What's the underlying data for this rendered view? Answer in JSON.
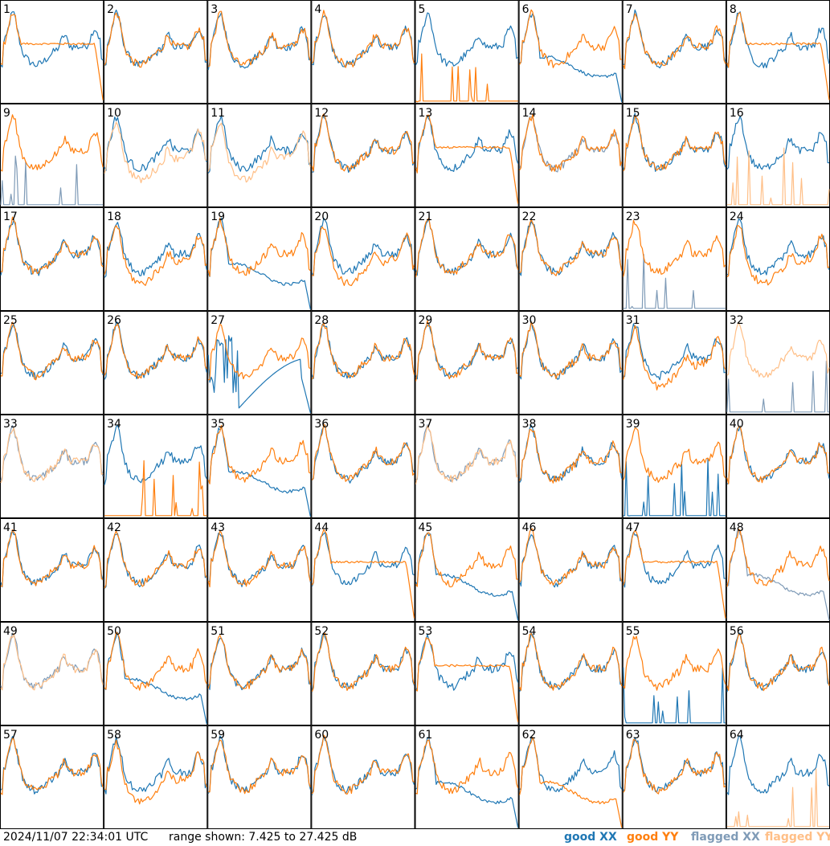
{
  "timestamp": "2024/11/07 22:34:01 UTC",
  "range_text": "range shown: 7.425 to 27.425 dB",
  "legend": [
    {
      "label": "good XX",
      "color": "#1f77b4"
    },
    {
      "label": "good YY",
      "color": "#ff7f0e"
    },
    {
      "label": "flagged XX",
      "color": "#7f9bb7"
    },
    {
      "label": "flagged YY",
      "color": "#ffbf87"
    }
  ],
  "chart_data": {
    "type": "line",
    "title": "",
    "ylim": [
      7.425,
      27.425
    ],
    "yunit": "dB",
    "grid": false,
    "legend_placement": "bottom-right",
    "panels": [
      {
        "id": "1",
        "xx": "good-bandpass",
        "yy": "good-bandpass-dropoff"
      },
      {
        "id": "2",
        "xx": "good-bandpass",
        "yy": "good-bandpass"
      },
      {
        "id": "3",
        "xx": "good-bandpass",
        "yy": "good-bandpass"
      },
      {
        "id": "4",
        "xx": "good-bandpass",
        "yy": "good-bandpass"
      },
      {
        "id": "5",
        "xx": "good-bandpass",
        "yy": "good-spikes"
      },
      {
        "id": "6",
        "xx": "good-low-dropoff",
        "yy": "good-bandpass"
      },
      {
        "id": "7",
        "xx": "good-bandpass",
        "yy": "good-bandpass"
      },
      {
        "id": "8",
        "xx": "good-bandpass",
        "yy": "good-smooth-dropoff"
      },
      {
        "id": "9",
        "xx": "flagged-spikes",
        "yy": "good-bandpass"
      },
      {
        "id": "10",
        "xx": "good-bandpass",
        "yy": "flagged-low"
      },
      {
        "id": "11",
        "xx": "good-bandpass",
        "yy": "flagged-low"
      },
      {
        "id": "12",
        "xx": "good-bandpass",
        "yy": "good-bandpass"
      },
      {
        "id": "13",
        "xx": "good-bandpass",
        "yy": "good-smooth-dropoff"
      },
      {
        "id": "14",
        "xx": "flagged-bandpass",
        "yy": "good-bandpass"
      },
      {
        "id": "15",
        "xx": "good-bandpass",
        "yy": "good-bandpass"
      },
      {
        "id": "16",
        "xx": "good-bandpass",
        "yy": "flagged-spikes"
      },
      {
        "id": "17",
        "xx": "good-bandpass",
        "yy": "good-bandpass"
      },
      {
        "id": "18",
        "xx": "good-bandpass",
        "yy": "good-low"
      },
      {
        "id": "19",
        "xx": "good-low-dropoff",
        "yy": "good-bandpass"
      },
      {
        "id": "20",
        "xx": "good-bandpass",
        "yy": "good-low"
      },
      {
        "id": "21",
        "xx": "good-bandpass",
        "yy": "good-bandpass"
      },
      {
        "id": "22",
        "xx": "good-bandpass",
        "yy": "good-bandpass"
      },
      {
        "id": "23",
        "xx": "flagged-spikes",
        "yy": "good-bandpass"
      },
      {
        "id": "24",
        "xx": "good-bandpass",
        "yy": "good-low"
      },
      {
        "id": "25",
        "xx": "good-bandpass",
        "yy": "good-bandpass"
      },
      {
        "id": "26",
        "xx": "good-bandpass",
        "yy": "good-bandpass"
      },
      {
        "id": "27",
        "xx": "good-noisy-dropoff",
        "yy": "good-bandpass"
      },
      {
        "id": "28",
        "xx": "good-bandpass",
        "yy": "good-bandpass"
      },
      {
        "id": "29",
        "xx": "good-bandpass",
        "yy": "good-bandpass"
      },
      {
        "id": "30",
        "xx": "good-bandpass",
        "yy": "good-bandpass"
      },
      {
        "id": "31",
        "xx": "good-bandpass",
        "yy": "good-low"
      },
      {
        "id": "32",
        "xx": "flagged-spikes",
        "yy": "flagged-bandpass"
      },
      {
        "id": "33",
        "xx": "flagged-bandpass",
        "yy": "flagged-bandpass"
      },
      {
        "id": "34",
        "xx": "good-bandpass",
        "yy": "good-spikes"
      },
      {
        "id": "35",
        "xx": "good-low-dropoff",
        "yy": "good-bandpass"
      },
      {
        "id": "36",
        "xx": "good-bandpass",
        "yy": "good-bandpass"
      },
      {
        "id": "37",
        "xx": "flagged-bandpass",
        "yy": "flagged-bandpass"
      },
      {
        "id": "38",
        "xx": "good-bandpass",
        "yy": "good-bandpass"
      },
      {
        "id": "39",
        "xx": "good-spikes",
        "yy": "good-bandpass"
      },
      {
        "id": "40",
        "xx": "good-bandpass",
        "yy": "good-bandpass"
      },
      {
        "id": "41",
        "xx": "good-bandpass",
        "yy": "good-bandpass"
      },
      {
        "id": "42",
        "xx": "good-bandpass",
        "yy": "good-bandpass"
      },
      {
        "id": "43",
        "xx": "good-bandpass",
        "yy": "good-bandpass"
      },
      {
        "id": "44",
        "xx": "good-bandpass",
        "yy": "good-smooth-dropoff"
      },
      {
        "id": "45",
        "xx": "good-low-dropoff",
        "yy": "good-bandpass"
      },
      {
        "id": "46",
        "xx": "good-bandpass",
        "yy": "good-bandpass"
      },
      {
        "id": "47",
        "xx": "good-bandpass",
        "yy": "good-smooth-dropoff"
      },
      {
        "id": "48",
        "xx": "flagged-low-dropoff",
        "yy": "good-bandpass"
      },
      {
        "id": "49",
        "xx": "flagged-bandpass",
        "yy": "flagged-bandpass"
      },
      {
        "id": "50",
        "xx": "good-low-dropoff",
        "yy": "good-bandpass"
      },
      {
        "id": "51",
        "xx": "good-bandpass",
        "yy": "good-bandpass"
      },
      {
        "id": "52",
        "xx": "good-bandpass",
        "yy": "good-bandpass"
      },
      {
        "id": "53",
        "xx": "good-bandpass",
        "yy": "good-smooth-dropoff"
      },
      {
        "id": "54",
        "xx": "good-bandpass",
        "yy": "good-bandpass"
      },
      {
        "id": "55",
        "xx": "good-spikes",
        "yy": "good-bandpass"
      },
      {
        "id": "56",
        "xx": "good-bandpass",
        "yy": "good-bandpass"
      },
      {
        "id": "57",
        "xx": "good-bandpass",
        "yy": "good-bandpass"
      },
      {
        "id": "58",
        "xx": "good-bandpass",
        "yy": "good-low"
      },
      {
        "id": "59",
        "xx": "good-bandpass",
        "yy": "good-bandpass"
      },
      {
        "id": "60",
        "xx": "good-bandpass",
        "yy": "good-bandpass"
      },
      {
        "id": "61",
        "xx": "good-low-dropoff",
        "yy": "good-bandpass"
      },
      {
        "id": "62",
        "xx": "good-bandpass",
        "yy": "good-low-dropoff"
      },
      {
        "id": "63",
        "xx": "good-bandpass",
        "yy": "good-bandpass"
      },
      {
        "id": "64",
        "xx": "good-bandpass",
        "yy": "flagged-spikes"
      }
    ]
  }
}
